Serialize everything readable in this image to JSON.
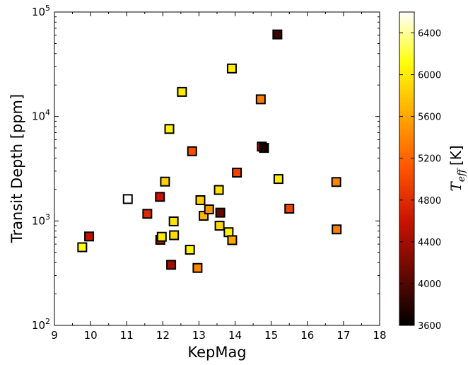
{
  "chart_data": {
    "type": "scatter",
    "xlabel": "KepMag",
    "ylabel": "Transit Depth [ppm]",
    "xlim": [
      9,
      18
    ],
    "ylim": [
      100,
      100000
    ],
    "y_scale": "log",
    "grid": false,
    "legend": "none",
    "x_ticks": [
      "9",
      "10",
      "11",
      "12",
      "13",
      "14",
      "15",
      "16",
      "17",
      "18"
    ],
    "y_ticks": [
      {
        "value": 100,
        "base": "10",
        "exp": "2"
      },
      {
        "value": 1000,
        "base": "10",
        "exp": "3"
      },
      {
        "value": 10000,
        "base": "10",
        "exp": "4"
      },
      {
        "value": 100000,
        "base": "10",
        "exp": "5"
      }
    ],
    "colorbar": {
      "label_main": "T",
      "label_sub": "eff",
      "label_unit": "[K]",
      "range": [
        3600,
        6600
      ],
      "colormap": "afmhot",
      "ticks": [
        3600,
        4000,
        4400,
        4800,
        5200,
        5600,
        6000,
        6400
      ]
    },
    "marker": "square",
    "points": [
      {
        "x": 9.77,
        "y": 560,
        "teff": 6150
      },
      {
        "x": 9.96,
        "y": 710,
        "teff": 4550
      },
      {
        "x": 11.03,
        "y": 1620,
        "teff": 6600
      },
      {
        "x": 11.57,
        "y": 1170,
        "teff": 4780
      },
      {
        "x": 11.92,
        "y": 1700,
        "teff": 4580
      },
      {
        "x": 11.93,
        "y": 660,
        "teff": 4500
      },
      {
        "x": 11.97,
        "y": 705,
        "teff": 6000
      },
      {
        "x": 12.06,
        "y": 2380,
        "teff": 5850
      },
      {
        "x": 12.18,
        "y": 7600,
        "teff": 6050
      },
      {
        "x": 12.23,
        "y": 380,
        "teff": 4400
      },
      {
        "x": 12.3,
        "y": 990,
        "teff": 5950
      },
      {
        "x": 12.31,
        "y": 730,
        "teff": 5900
      },
      {
        "x": 12.53,
        "y": 17200,
        "teff": 6000
      },
      {
        "x": 12.75,
        "y": 530,
        "teff": 6050
      },
      {
        "x": 12.81,
        "y": 4650,
        "teff": 5050
      },
      {
        "x": 12.96,
        "y": 355,
        "teff": 5400
      },
      {
        "x": 13.04,
        "y": 1580,
        "teff": 5850
      },
      {
        "x": 13.13,
        "y": 1120,
        "teff": 5700
      },
      {
        "x": 13.28,
        "y": 1290,
        "teff": 5500
      },
      {
        "x": 13.55,
        "y": 1980,
        "teff": 5950
      },
      {
        "x": 13.57,
        "y": 900,
        "teff": 5900
      },
      {
        "x": 13.59,
        "y": 1200,
        "teff": 4100
      },
      {
        "x": 13.82,
        "y": 780,
        "teff": 6050
      },
      {
        "x": 13.91,
        "y": 28800,
        "teff": 6000
      },
      {
        "x": 13.92,
        "y": 655,
        "teff": 5600
      },
      {
        "x": 14.05,
        "y": 2900,
        "teff": 4950
      },
      {
        "x": 14.71,
        "y": 14600,
        "teff": 5350
      },
      {
        "x": 14.74,
        "y": 5150,
        "teff": 4700
      },
      {
        "x": 14.8,
        "y": 5000,
        "teff": 3700
      },
      {
        "x": 15.2,
        "y": 2520,
        "teff": 6000
      },
      {
        "x": 15.17,
        "y": 61000,
        "teff": 3900
      },
      {
        "x": 15.5,
        "y": 1310,
        "teff": 4950
      },
      {
        "x": 16.8,
        "y": 2360,
        "teff": 5400
      },
      {
        "x": 16.81,
        "y": 830,
        "teff": 5350
      }
    ]
  }
}
